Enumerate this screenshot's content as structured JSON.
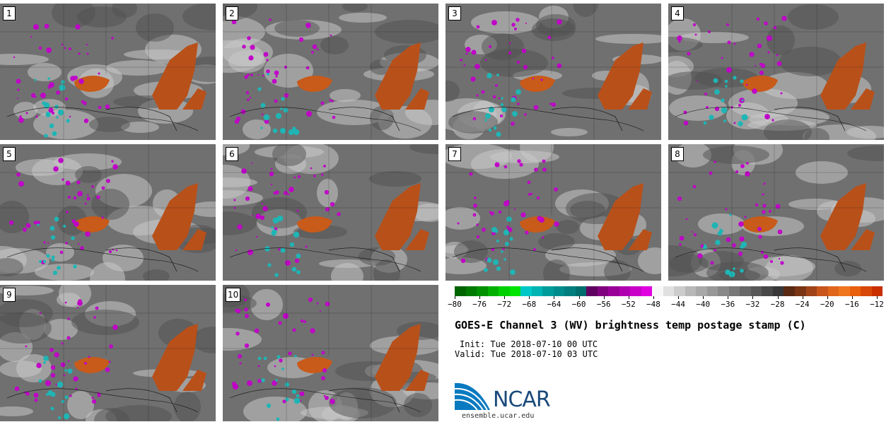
{
  "panels": [
    {
      "label": "1"
    },
    {
      "label": "2"
    },
    {
      "label": "3"
    },
    {
      "label": "4"
    },
    {
      "label": "5"
    },
    {
      "label": "6"
    },
    {
      "label": "7"
    },
    {
      "label": "8"
    },
    {
      "label": "9"
    },
    {
      "label": "10"
    }
  ],
  "colorbar": {
    "colors": [
      "#006400",
      "#007a00",
      "#009000",
      "#00b000",
      "#00d000",
      "#00e400",
      "#00c8c8",
      "#00b4b4",
      "#009c9c",
      "#008c8c",
      "#007e7e",
      "#006e6e",
      "#600060",
      "#800080",
      "#980098",
      "#b000b0",
      "#c800c8",
      "#e000e0",
      "#f8f8f8",
      "#e0e0e0",
      "#cccccc",
      "#b8b8b8",
      "#a8a8a8",
      "#989898",
      "#888888",
      "#787878",
      "#686868",
      "#585858",
      "#484848",
      "#383838",
      "#5a2a12",
      "#7a3515",
      "#a04418",
      "#c8561a",
      "#e0661c",
      "#f0761e",
      "#e8600e",
      "#d84808",
      "#c83000"
    ],
    "ticks": [
      "−80",
      "−76",
      "−72",
      "−68",
      "−64",
      "−60",
      "−56",
      "−52",
      "−48",
      "−44",
      "−40",
      "−36",
      "−32",
      "−28",
      "−24",
      "−20",
      "−16",
      "−12"
    ]
  },
  "title": "GOES-E Channel 3 (WV) brightness temp postage stamp (C)",
  "init": "Init: Tue 2018-07-10 00 UTC",
  "valid": "Valid: Tue 2018-07-10 03 UTC",
  "logo_text": "NCAR",
  "site": "ensemble.ucar.edu"
}
